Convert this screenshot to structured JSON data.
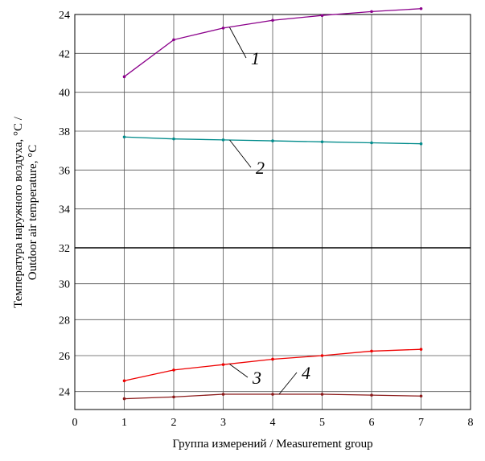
{
  "chart_data": {
    "type": "line",
    "xlabel": "Группа измерений / Measurement group",
    "ylabel_line1": "Температура наружного воздуха, °C /",
    "ylabel_line2": "Outdoor air temperature, °C",
    "xlim": [
      0,
      8
    ],
    "x_ticks": [
      "0",
      "1",
      "2",
      "3",
      "4",
      "5",
      "6",
      "7",
      "8"
    ],
    "grid": true,
    "upper_panel": {
      "y_ticks": [
        "24",
        "42",
        "40",
        "38",
        "36",
        "34",
        "32"
      ],
      "ylim": [
        32,
        44
      ]
    },
    "lower_panel": {
      "y_ticks": [
        "32",
        "30",
        "28",
        "26",
        "24"
      ],
      "ylim": [
        23,
        32
      ]
    },
    "series": [
      {
        "label": "1",
        "panel": "upper",
        "color": "#8b008b",
        "x": [
          1,
          2,
          3,
          4,
          5,
          6,
          7
        ],
        "y": [
          40.8,
          42.7,
          43.3,
          43.7,
          43.95,
          44.15,
          44.3
        ]
      },
      {
        "label": "2",
        "panel": "upper",
        "color": "#008b8b",
        "x": [
          1,
          2,
          3,
          4,
          5,
          6,
          7
        ],
        "y": [
          37.7,
          37.6,
          37.55,
          37.5,
          37.45,
          37.4,
          37.35
        ]
      },
      {
        "label": "3",
        "panel": "lower",
        "color": "#ee0000",
        "x": [
          1,
          2,
          3,
          4,
          5,
          6,
          7
        ],
        "y": [
          24.6,
          25.2,
          25.5,
          25.8,
          26.0,
          26.25,
          26.35
        ]
      },
      {
        "label": "4",
        "panel": "lower",
        "color": "#8b1a1a",
        "x": [
          1,
          2,
          3,
          4,
          5,
          6,
          7
        ],
        "y": [
          23.6,
          23.7,
          23.85,
          23.85,
          23.85,
          23.8,
          23.75
        ]
      }
    ]
  }
}
